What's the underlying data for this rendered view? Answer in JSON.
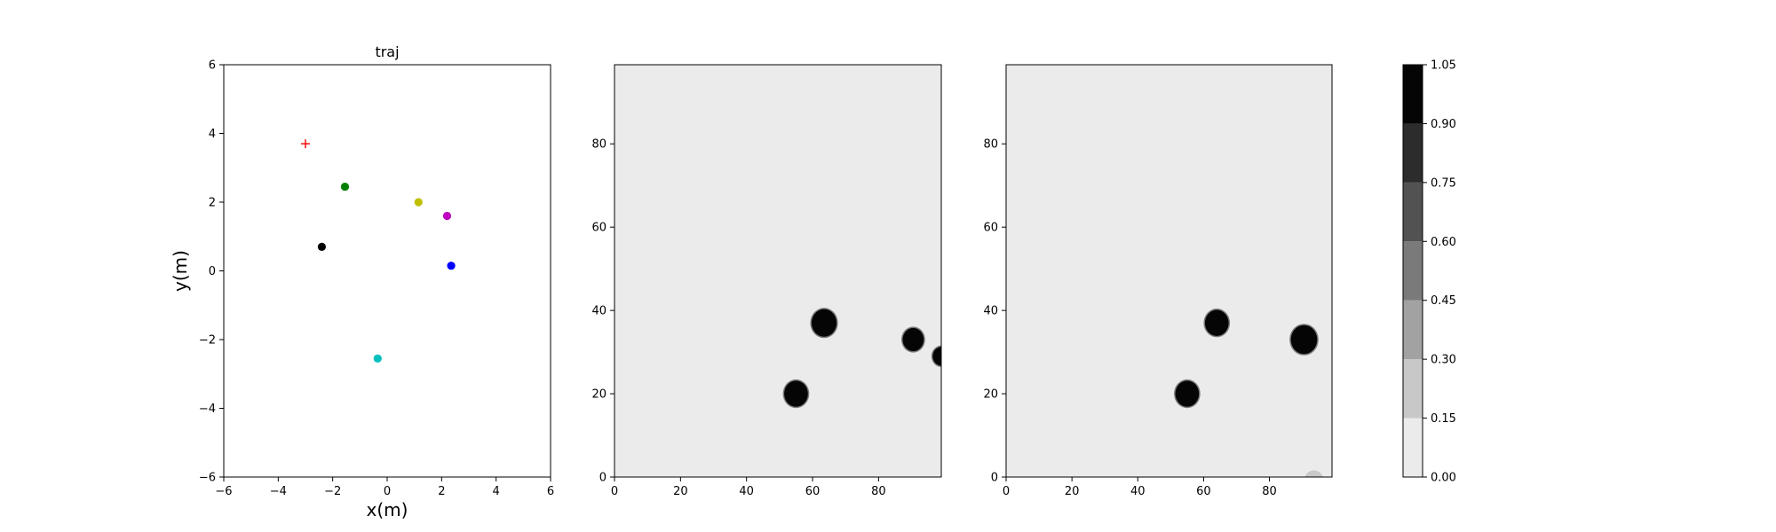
{
  "chart_data": [
    {
      "type": "scatter",
      "title": "traj",
      "xlabel": "x(m)",
      "ylabel": "y(m)",
      "xlim": [
        -6,
        6
      ],
      "ylim": [
        -6,
        6
      ],
      "xticks": [
        "−6",
        "−4",
        "−2",
        "0",
        "2",
        "4",
        "6"
      ],
      "yticks": [
        "−6",
        "−4",
        "−2",
        "0",
        "2",
        "4",
        "6"
      ],
      "xtick_values": [
        -6,
        -4,
        -2,
        0,
        2,
        4,
        6
      ],
      "ytick_values": [
        -6,
        -4,
        -2,
        0,
        2,
        4,
        6
      ],
      "grid": false,
      "points": [
        {
          "x": -3.0,
          "y": 3.7,
          "color": "#ff0000",
          "marker": "plus"
        },
        {
          "x": -1.55,
          "y": 2.45,
          "color": "#008000",
          "marker": "circle"
        },
        {
          "x": 1.15,
          "y": 2.0,
          "color": "#bfbf00",
          "marker": "circle"
        },
        {
          "x": 2.2,
          "y": 1.6,
          "color": "#bf00bf",
          "marker": "circle"
        },
        {
          "x": -2.4,
          "y": 0.7,
          "color": "#000000",
          "marker": "circle"
        },
        {
          "x": 2.35,
          "y": 0.15,
          "color": "#0000ff",
          "marker": "circle"
        },
        {
          "x": -0.35,
          "y": -2.55,
          "color": "#00bfbf",
          "marker": "circle"
        }
      ]
    },
    {
      "type": "heatmap",
      "title": "",
      "xlim": [
        0,
        99
      ],
      "ylim": [
        0,
        99
      ],
      "xticks": [
        "0",
        "20",
        "40",
        "60",
        "80"
      ],
      "yticks": [
        "0",
        "20",
        "40",
        "60",
        "80"
      ],
      "xtick_values": [
        0,
        20,
        40,
        60,
        80
      ],
      "ytick_values": [
        0,
        20,
        40,
        60,
        80
      ],
      "background_value": 0.0,
      "blobs": [
        {
          "x": 55,
          "y": 20,
          "r": 3.6,
          "value": 1.0
        },
        {
          "x": 63.5,
          "y": 37,
          "r": 3.8,
          "value": 1.0
        },
        {
          "x": 90.5,
          "y": 33,
          "r": 3.2,
          "value": 1.0
        },
        {
          "x": 99,
          "y": 29,
          "r": 2.6,
          "value": 1.0
        }
      ]
    },
    {
      "type": "heatmap",
      "title": "",
      "xlim": [
        0,
        99
      ],
      "ylim": [
        0,
        99
      ],
      "xticks": [
        "0",
        "20",
        "40",
        "60",
        "80"
      ],
      "yticks": [
        "0",
        "20",
        "40",
        "60",
        "80"
      ],
      "xtick_values": [
        0,
        20,
        40,
        60,
        80
      ],
      "ytick_values": [
        0,
        20,
        40,
        60,
        80
      ],
      "background_value": 0.0,
      "blobs": [
        {
          "x": 55,
          "y": 20,
          "r": 3.6,
          "value": 1.0
        },
        {
          "x": 64,
          "y": 37,
          "r": 3.6,
          "value": 1.0
        },
        {
          "x": 90.5,
          "y": 33,
          "r": 4.0,
          "value": 1.0
        },
        {
          "x": 93.5,
          "y": -1,
          "r": 3.0,
          "value": 0.25
        }
      ]
    }
  ],
  "colorbar": {
    "levels": [
      0.0,
      0.15,
      0.3,
      0.45,
      0.6,
      0.75,
      0.9,
      1.05
    ],
    "labels": [
      "0.00",
      "0.15",
      "0.30",
      "0.45",
      "0.60",
      "0.75",
      "0.90",
      "1.05"
    ],
    "colors": [
      "#ebebeb",
      "#c8c8c8",
      "#a2a2a2",
      "#7a7a7a",
      "#525252",
      "#2c2c2c",
      "#050505"
    ]
  }
}
